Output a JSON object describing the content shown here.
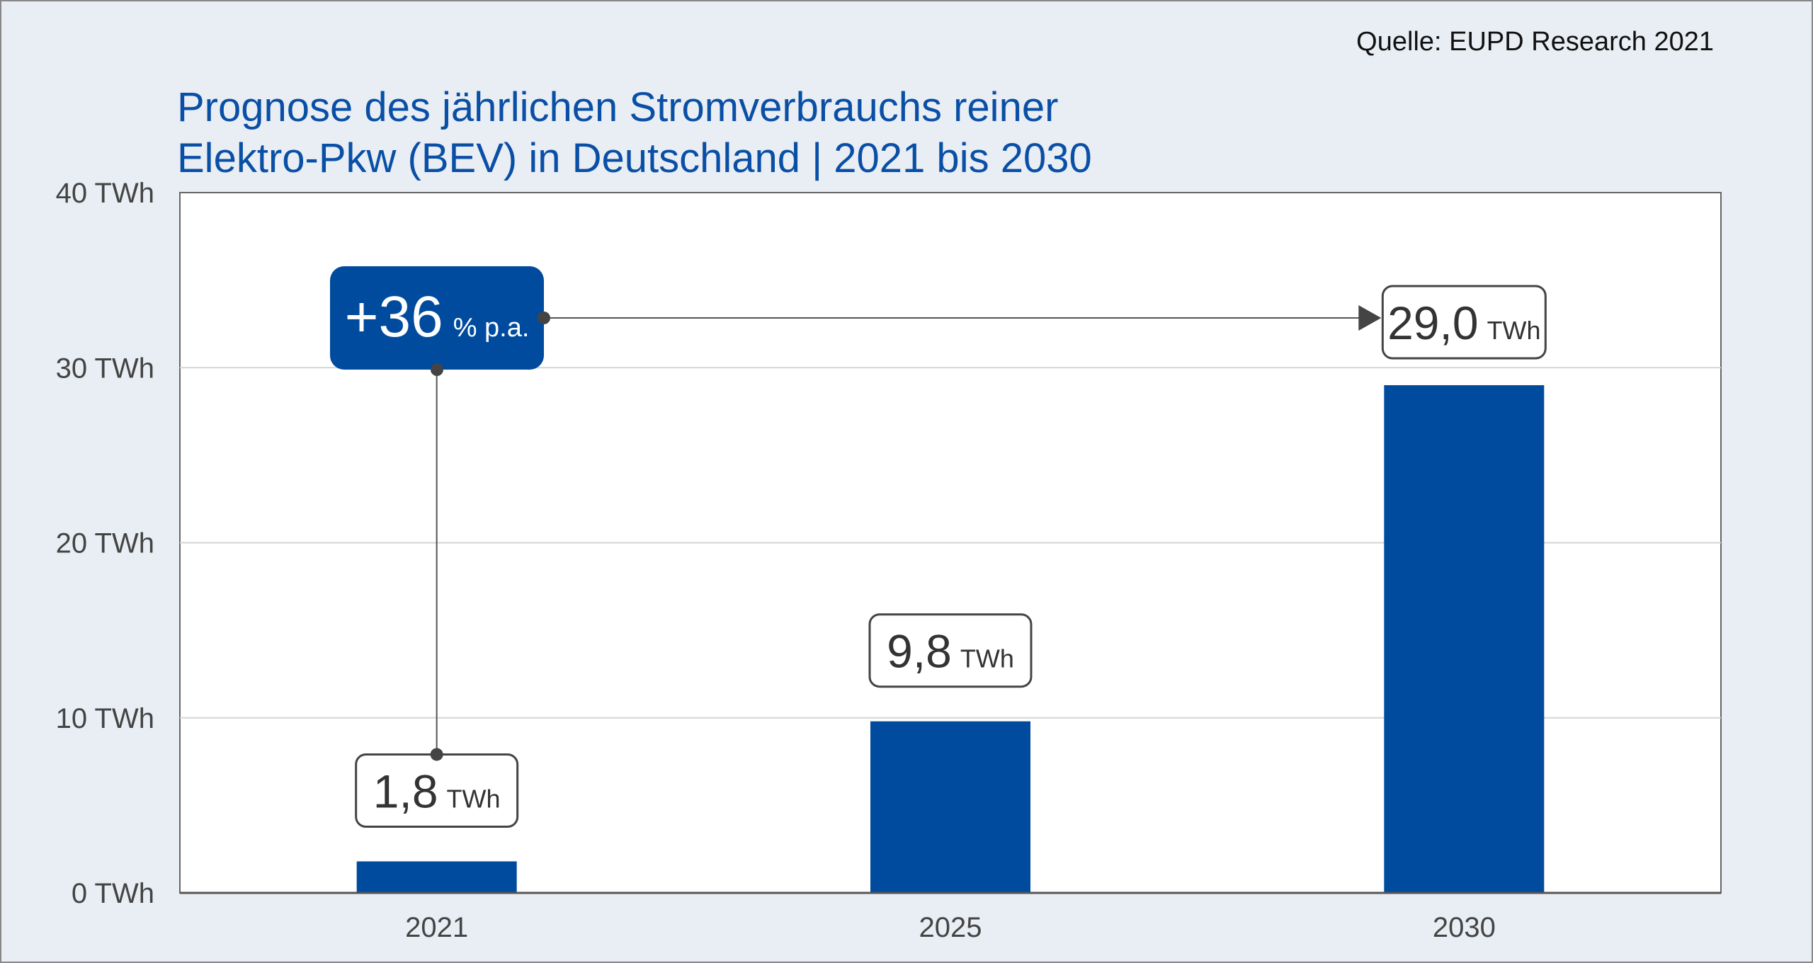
{
  "source": "Quelle: EUPD Research 2021",
  "title_line1": "Prognose des jährlichen Stromverbrauchs reiner",
  "title_line2": "Elektro-Pkw (BEV) in Deutschland | 2021 bis 2030",
  "colors": {
    "bar": "#004b9e",
    "title": "#0a4fa6",
    "background": "#e9eef4",
    "plot": "#ffffff",
    "connector": "#555555"
  },
  "chart_data": {
    "type": "bar",
    "categories": [
      "2021",
      "2025",
      "2030"
    ],
    "values": [
      1.8,
      9.8,
      29.0
    ],
    "unit": "TWh",
    "value_labels": [
      "1,8",
      "9,8",
      "29,0"
    ],
    "ylim": [
      0,
      40
    ],
    "yticks": [
      0,
      10,
      20,
      30,
      40
    ],
    "ytick_labels": [
      "0 TWh",
      "10 TWh",
      "20 TWh",
      "30 TWh",
      "40 TWh"
    ],
    "grid": true,
    "legend": "none",
    "annotation": {
      "value": "+36",
      "unit": "% p.a.",
      "from_category": "2021",
      "to_category": "2030"
    }
  }
}
